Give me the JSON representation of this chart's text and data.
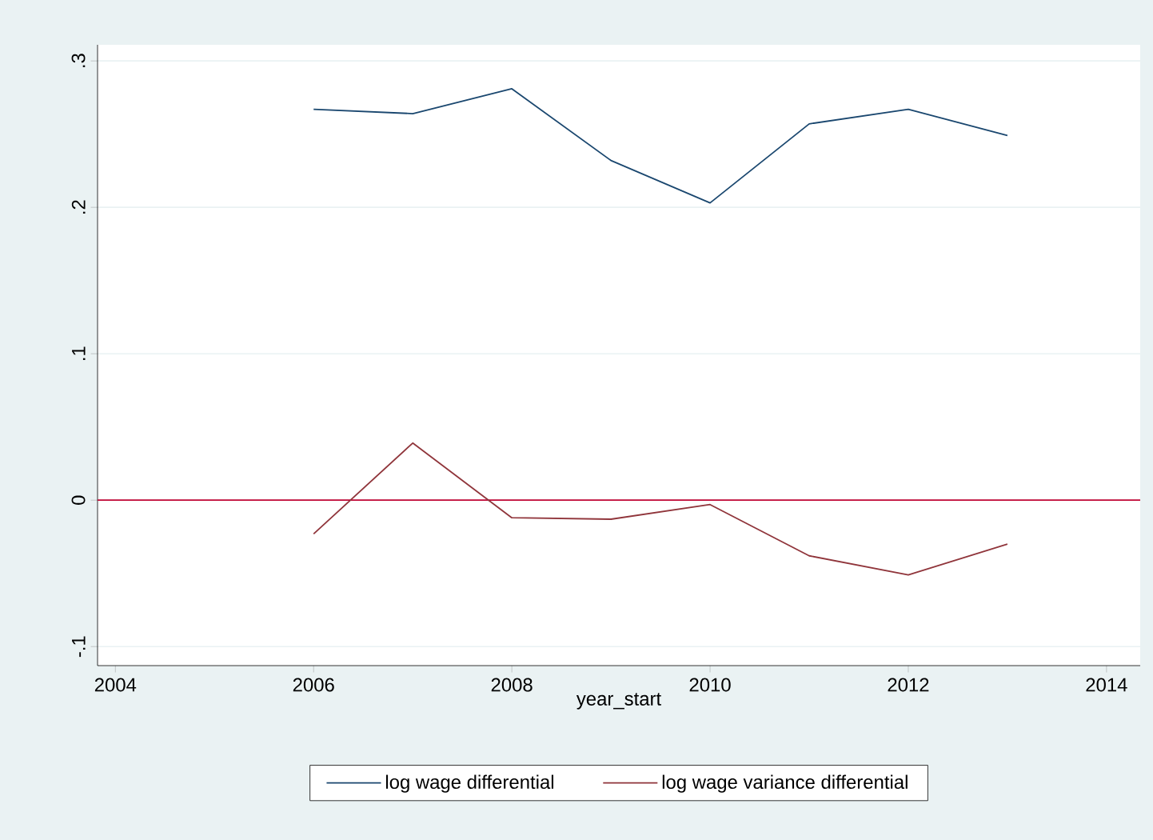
{
  "chart_data": {
    "type": "line",
    "xlabel": "year_start",
    "x": [
      2006,
      2007,
      2008,
      2009,
      2010,
      2011,
      2012,
      2013
    ],
    "series": [
      {
        "name": "log wage differential",
        "color": "#1a476f",
        "values": [
          0.267,
          0.264,
          0.281,
          0.232,
          0.203,
          0.257,
          0.267,
          0.249
        ]
      },
      {
        "name": "log wage variance differential",
        "color": "#90353b",
        "values": [
          -0.023,
          0.039,
          -0.012,
          -0.013,
          -0.003,
          -0.038,
          -0.051,
          -0.03
        ]
      }
    ],
    "xlim": [
      2003.82,
      2014.34
    ],
    "xticks": [
      2004,
      2006,
      2008,
      2010,
      2012,
      2014
    ],
    "ylim": [
      -0.113,
      0.311
    ],
    "yticks": [
      {
        "value": -0.1,
        "label": "-.1"
      },
      {
        "value": 0,
        "label": "0"
      },
      {
        "value": 0.1,
        "label": ".1"
      },
      {
        "value": 0.2,
        "label": ".2"
      },
      {
        "value": 0.3,
        "label": ".3"
      }
    ],
    "ref_lines": [
      {
        "axis": "y",
        "value": 0,
        "color": "#c10534"
      }
    ],
    "grid": "y",
    "legend": "bottom",
    "marker": "none",
    "line_style": "solid"
  }
}
